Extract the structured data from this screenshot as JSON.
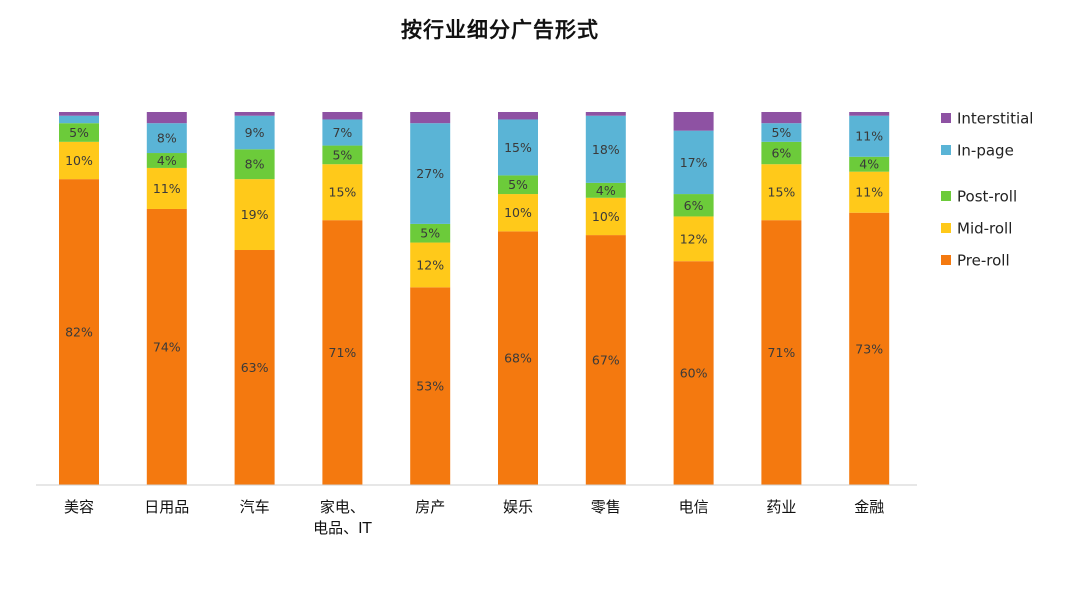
{
  "chart_data": {
    "type": "bar",
    "stacked": true,
    "title": "按行业细分广告形式",
    "categories": [
      "美容",
      "日用品",
      "汽车",
      "家电、电品、IT",
      "房产",
      "娱乐",
      "零售",
      "电信",
      "药业",
      "金融"
    ],
    "category_lines": [
      [
        "美容"
      ],
      [
        "日用品"
      ],
      [
        "汽车"
      ],
      [
        "家电、",
        "电品、IT"
      ],
      [
        "房产"
      ],
      [
        "娱乐"
      ],
      [
        "零售"
      ],
      [
        "电信"
      ],
      [
        "药业"
      ],
      [
        "金融"
      ]
    ],
    "series": [
      {
        "name": "Pre-roll",
        "color": "#F4790F",
        "values": [
          82,
          74,
          63,
          71,
          53,
          68,
          67,
          60,
          71,
          73
        ],
        "labels": [
          "82%",
          "74%",
          "63%",
          "71%",
          "53%",
          "68%",
          "67%",
          "60%",
          "71%",
          "73%"
        ]
      },
      {
        "name": "Mid-roll",
        "color": "#FFC91A",
        "values": [
          10,
          11,
          19,
          15,
          12,
          10,
          10,
          12,
          15,
          11
        ],
        "labels": [
          "10%",
          "11%",
          "19%",
          "15%",
          "12%",
          "10%",
          "10%",
          "12%",
          "15%",
          "11%"
        ]
      },
      {
        "name": "Post-roll",
        "color": "#6CCB3A",
        "values": [
          5,
          4,
          8,
          5,
          5,
          5,
          4,
          6,
          6,
          4
        ],
        "labels": [
          "5%",
          "4%",
          "8%",
          "5%",
          "5%",
          "5%",
          "4%",
          "6%",
          "6%",
          "4%"
        ]
      },
      {
        "name": "In-page",
        "color": "#5AB4D6",
        "values": [
          2,
          8,
          9,
          7,
          27,
          15,
          18,
          17,
          5,
          11
        ],
        "labels": [
          "",
          "8%",
          "9%",
          "7%",
          "27%",
          "15%",
          "18%",
          "17%",
          "5%",
          "11%"
        ]
      },
      {
        "name": "Interstitial",
        "color": "#8E52A3",
        "values": [
          1,
          3,
          1,
          2,
          3,
          2,
          1,
          5,
          3,
          1
        ],
        "labels": [
          "",
          "",
          "",
          "",
          "",
          "",
          "",
          "",
          "",
          ""
        ]
      }
    ],
    "legend": {
      "placement": "right",
      "order": [
        "Interstitial",
        "In-page",
        "Post-roll",
        "Mid-roll",
        "Pre-roll"
      ]
    },
    "ylim": [
      0,
      100
    ],
    "grid": false
  }
}
